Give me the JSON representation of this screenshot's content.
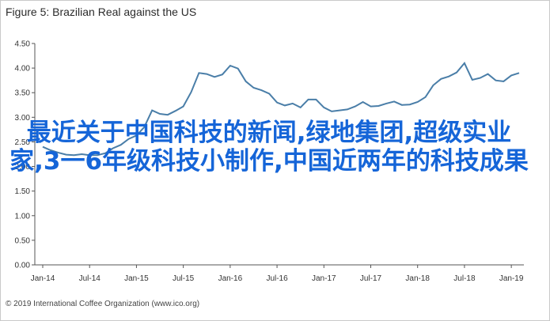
{
  "title": "Figure 5: Brazilian Real against the US",
  "footer": "© 2019 International Coffee Organization (www.ico.org)",
  "overlay_text": "最近关于中国科技的新闻,绿地集团,超级实业家,3一6年级科技小制作,中国近两年的科技成果",
  "colors": {
    "line": "#4a7ea8",
    "overlay": "#1565d8",
    "axis": "#555555"
  },
  "chart_data": {
    "type": "line",
    "title": "Figure 5: Brazilian Real against the US",
    "xlabel": "",
    "ylabel": "",
    "ylim": [
      0.0,
      4.5
    ],
    "yticks": [
      "0.00",
      "0.50",
      "1.00",
      "1.50",
      "2.00",
      "2.50",
      "3.00",
      "3.50",
      "4.00",
      "4.50"
    ],
    "xticks": [
      "Jan-14",
      "Jul-14",
      "Jan-15",
      "Jul-15",
      "Jan-16",
      "Jul-16",
      "Jan-17",
      "Jul-17",
      "Jan-18",
      "Jul-18",
      "Jan-19"
    ],
    "grid": false,
    "series": [
      {
        "values": [
          2.4,
          2.33,
          2.28,
          2.24,
          2.23,
          2.25,
          2.23,
          2.23,
          2.27,
          2.37,
          2.44,
          2.56,
          2.63,
          2.8,
          3.14,
          3.07,
          3.05,
          3.13,
          3.22,
          3.51,
          3.9,
          3.88,
          3.82,
          3.87,
          4.05,
          3.99,
          3.73,
          3.6,
          3.55,
          3.48,
          3.3,
          3.24,
          3.28,
          3.2,
          3.36,
          3.36,
          3.2,
          3.12,
          3.14,
          3.16,
          3.22,
          3.31,
          3.22,
          3.23,
          3.28,
          3.32,
          3.25,
          3.26,
          3.31,
          3.41,
          3.65,
          3.78,
          3.83,
          3.91,
          4.1,
          3.76,
          3.8,
          3.88,
          3.75,
          3.73,
          3.85,
          3.9
        ]
      }
    ]
  }
}
